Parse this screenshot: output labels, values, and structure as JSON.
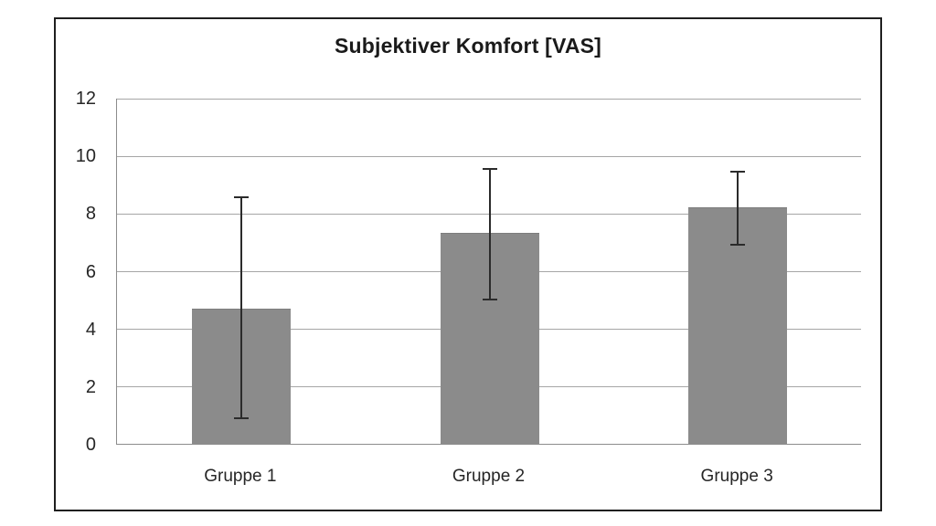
{
  "chart_data": {
    "type": "bar",
    "title": "Subjektiver Komfort [VAS]",
    "categories": [
      "Gruppe 1",
      "Gruppe 2",
      "Gruppe 3"
    ],
    "values": [
      4.7,
      7.3,
      8.2
    ],
    "errors": [
      {
        "low": 0.9,
        "high": 8.6
      },
      {
        "low": 5.0,
        "high": 9.6
      },
      {
        "low": 6.9,
        "high": 9.5
      }
    ],
    "xlabel": "",
    "ylabel": "",
    "ylim": [
      0,
      12
    ],
    "ytick_step": 2,
    "ytick_labels": [
      "0",
      "2",
      "4",
      "6",
      "8",
      "10",
      "12"
    ],
    "grid": "horizontal",
    "legend": "none",
    "bar_color": "#8b8b8b",
    "error_bar_color": "#2b2b2b",
    "gridline_color": "#a6a6a6",
    "frame_border_color": "#1f1f1f",
    "background_color": "#ffffff"
  }
}
